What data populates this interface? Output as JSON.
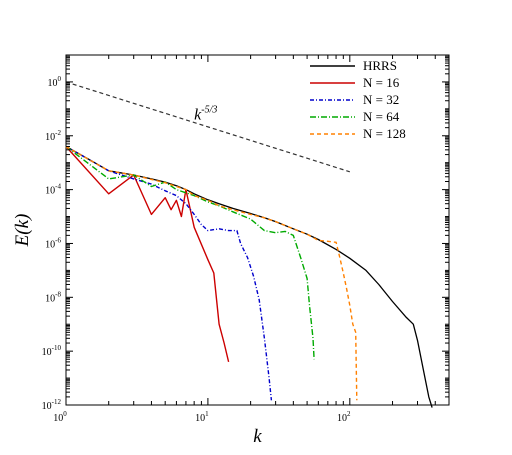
{
  "chart_data": {
    "type": "line",
    "title": "",
    "xlabel": "k",
    "ylabel": "E(k)",
    "x_scale": "log",
    "y_scale": "log",
    "xlim": [
      1,
      500
    ],
    "ylim": [
      1e-12,
      10
    ],
    "grid": false,
    "legend_position": "top-right",
    "x_ticks": [
      {
        "value": 1,
        "base": "10",
        "exp": "0"
      },
      {
        "value": 10,
        "base": "10",
        "exp": "1"
      },
      {
        "value": 100,
        "base": "10",
        "exp": "2"
      }
    ],
    "y_ticks": [
      {
        "value": 1,
        "base": "10",
        "exp": "0"
      },
      {
        "value": 0.01,
        "base": "10",
        "exp": "-2"
      },
      {
        "value": 0.0001,
        "base": "10",
        "exp": "-4"
      },
      {
        "value": 1e-06,
        "base": "10",
        "exp": "-6"
      },
      {
        "value": 1e-08,
        "base": "10",
        "exp": "-8"
      },
      {
        "value": 1e-10,
        "base": "10",
        "exp": "-10"
      },
      {
        "value": 1e-12,
        "base": "10",
        "exp": "-12"
      }
    ],
    "annotation": {
      "text_base": "k",
      "text_exp": "-5/3",
      "at": [
        8,
        0.04
      ]
    },
    "series": [
      {
        "name": "HRRS",
        "color": "#000000",
        "dash": "solid",
        "points": [
          [
            1,
            0.004
          ],
          [
            1.5,
            0.0012
          ],
          [
            2,
            0.0005
          ],
          [
            3,
            0.00035
          ],
          [
            4,
            0.00025
          ],
          [
            5,
            0.00019
          ],
          [
            6,
            0.00014
          ],
          [
            7,
            0.0001
          ],
          [
            8,
            7e-05
          ],
          [
            10,
            4.2e-05
          ],
          [
            12,
            3e-05
          ],
          [
            15,
            2e-05
          ],
          [
            20,
            1.3e-05
          ],
          [
            25,
            9e-06
          ],
          [
            30,
            6.5e-06
          ],
          [
            40,
            3.5e-06
          ],
          [
            50,
            2.2e-06
          ],
          [
            60,
            1.4e-06
          ],
          [
            80,
            6e-07
          ],
          [
            100,
            2.8e-07
          ],
          [
            130,
            1e-07
          ],
          [
            160,
            3e-08
          ],
          [
            200,
            7e-09
          ],
          [
            250,
            1.8e-09
          ],
          [
            280,
            1e-09
          ],
          [
            300,
            2.5e-10
          ],
          [
            330,
            2e-11
          ],
          [
            360,
            2e-12
          ],
          [
            380,
            8e-13
          ]
        ]
      },
      {
        "name": "N = 16",
        "color": "#cc0000",
        "dash": "solid",
        "points": [
          [
            1,
            0.004
          ],
          [
            2,
            7e-05
          ],
          [
            3,
            0.00035
          ],
          [
            4,
            1.2e-05
          ],
          [
            5,
            5e-05
          ],
          [
            5.5,
            1.8e-05
          ],
          [
            6,
            4e-05
          ],
          [
            6.5,
            1e-05
          ],
          [
            7,
            0.0001
          ],
          [
            8,
            4e-06
          ],
          [
            10,
            2.5e-07
          ],
          [
            11,
            8e-08
          ],
          [
            12,
            1e-09
          ],
          [
            13,
            2e-10
          ],
          [
            14,
            4e-11
          ]
        ]
      },
      {
        "name": "N = 32",
        "color": "#0000cc",
        "dash": "4,2,1,2",
        "points": [
          [
            1,
            0.004
          ],
          [
            2,
            0.0005
          ],
          [
            3,
            0.00025
          ],
          [
            4,
            0.00016
          ],
          [
            5,
            9e-05
          ],
          [
            6,
            6e-05
          ],
          [
            7,
            3e-05
          ],
          [
            8,
            1.2e-05
          ],
          [
            9,
            5e-06
          ],
          [
            10,
            3e-06
          ],
          [
            12,
            3.5e-06
          ],
          [
            14,
            3e-06
          ],
          [
            16,
            3e-06
          ],
          [
            17,
            1e-06
          ],
          [
            19,
            3e-07
          ],
          [
            21,
            6e-08
          ],
          [
            23,
            8e-09
          ],
          [
            25,
            3e-10
          ],
          [
            27,
            1e-11
          ],
          [
            28,
            1.5e-12
          ]
        ]
      },
      {
        "name": "N = 64",
        "color": "#00aa00",
        "dash": "6,2,1,2",
        "points": [
          [
            1,
            0.004
          ],
          [
            2,
            0.00025
          ],
          [
            3,
            0.00035
          ],
          [
            4,
            0.00013
          ],
          [
            5,
            0.00019
          ],
          [
            6,
            0.0001
          ],
          [
            8,
            6e-05
          ],
          [
            10,
            3.5e-05
          ],
          [
            12,
            2.5e-05
          ],
          [
            15,
            1.5e-05
          ],
          [
            20,
            8e-06
          ],
          [
            25,
            3e-06
          ],
          [
            30,
            2.5e-06
          ],
          [
            35,
            2.8e-06
          ],
          [
            40,
            2e-06
          ],
          [
            45,
            3e-07
          ],
          [
            50,
            5e-08
          ],
          [
            52,
            5e-09
          ],
          [
            55,
            3e-10
          ],
          [
            56,
            5e-11
          ]
        ]
      },
      {
        "name": "N = 128",
        "color": "#ff8000",
        "dash": "4,3",
        "points": [
          [
            1,
            0.004
          ],
          [
            2,
            0.0005
          ],
          [
            3,
            0.00035
          ],
          [
            4,
            0.00024
          ],
          [
            5,
            0.00018
          ],
          [
            6,
            0.00013
          ],
          [
            7,
            0.0001
          ],
          [
            8,
            6e-05
          ],
          [
            10,
            4e-05
          ],
          [
            12,
            2.5e-05
          ],
          [
            15,
            1.8e-05
          ],
          [
            20,
            1.2e-05
          ],
          [
            25,
            9e-06
          ],
          [
            30,
            6.5e-06
          ],
          [
            40,
            3.5e-06
          ],
          [
            50,
            2.2e-06
          ],
          [
            60,
            1.3e-06
          ],
          [
            70,
            1.2e-06
          ],
          [
            80,
            1.1e-06
          ],
          [
            85,
            3e-07
          ],
          [
            90,
            8e-08
          ],
          [
            95,
            2e-08
          ],
          [
            100,
            5e-09
          ],
          [
            105,
            1e-09
          ],
          [
            110,
            5e-10
          ],
          [
            112,
            1.5e-12
          ]
        ]
      }
    ],
    "reference_line": {
      "slope_label": "k^-5/3",
      "color": "#333333",
      "dash": "4,3",
      "points": [
        [
          1,
          1
        ],
        [
          100,
          0.00046
        ]
      ]
    }
  }
}
